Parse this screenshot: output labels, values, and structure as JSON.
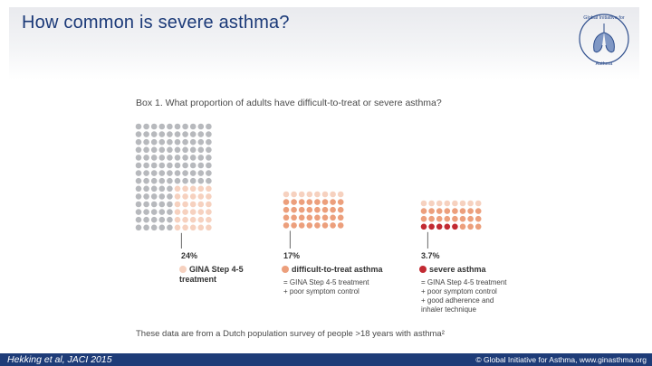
{
  "slide": {
    "title": "How common is severe asthma?",
    "box_title": "Box 1. What proportion of adults have difficult-to-treat or severe asthma?",
    "footnote": "These data are from a Dutch population survey of people >18 years with asthma²"
  },
  "logo": {
    "text_top": "Global Initiative for",
    "text_bottom": "Asthma"
  },
  "colors": {
    "grey": "#b7b9bd",
    "light_peach": "#f6d1bf",
    "salmon": "#ec9f7c",
    "dark_red": "#c22a32",
    "brand_navy": "#1e3c78",
    "title_blue": "#1b3a78"
  },
  "chart_data": {
    "type": "dot-matrix",
    "title": "Box 1. What proportion of adults have difficult-to-treat or severe asthma?",
    "groups": [
      {
        "name": "GINA Step 4-5 treatment",
        "percent": 24,
        "label": "24%",
        "legend_line1": "GINA Step 4-5",
        "legend_line2": "treatment",
        "sub": []
      },
      {
        "name": "difficult-to-treat asthma",
        "percent": 17,
        "label": "17%",
        "legend_line1": "difficult-to-treat asthma",
        "legend_line2": "",
        "sub": [
          "= GINA Step 4-5 treatment",
          "+ poor symptom control"
        ]
      },
      {
        "name": "severe asthma",
        "percent": 3.7,
        "label": "3.7%",
        "legend_line1": "severe asthma",
        "legend_line2": "",
        "sub": [
          "= GINA Step 4-5 treatment",
          "+ poor symptom control",
          "+ good adherence and",
          "inhaler technique"
        ]
      }
    ]
  },
  "footer": {
    "citation": "Hekking et al, JACI 2015",
    "copyright": "© Global Initiative for Asthma, www.ginasthma.org"
  }
}
